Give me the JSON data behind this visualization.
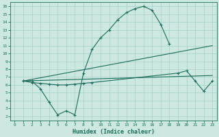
{
  "xlabel": "Humidex (Indice chaleur)",
  "bg_color": "#cce8e0",
  "line_color": "#1a6b5a",
  "grid_color": "#aad4cc",
  "xlim": [
    -0.5,
    23.5
  ],
  "ylim": [
    1.5,
    16.5
  ],
  "xticks": [
    0,
    1,
    2,
    3,
    4,
    5,
    6,
    7,
    8,
    9,
    10,
    11,
    12,
    13,
    14,
    15,
    16,
    17,
    18,
    19,
    20,
    21,
    22,
    23
  ],
  "yticks": [
    2,
    3,
    4,
    5,
    6,
    7,
    8,
    9,
    10,
    11,
    12,
    13,
    14,
    15,
    16
  ],
  "line1_x": [
    1,
    2,
    3,
    4,
    5,
    6,
    7,
    8,
    9,
    10,
    11,
    12,
    13,
    14,
    15,
    16,
    17,
    18
  ],
  "line1_y": [
    6.5,
    6.5,
    5.5,
    3.8,
    2.2,
    2.7,
    2.2,
    7.5,
    10.5,
    12.0,
    13.0,
    14.3,
    15.2,
    15.7,
    16.0,
    15.5,
    13.7,
    11.2
  ],
  "line2_x": [
    1,
    23
  ],
  "line2_y": [
    6.5,
    11.0
  ],
  "line3_x": [
    1,
    23
  ],
  "line3_y": [
    6.5,
    7.2
  ],
  "line4_x": [
    1,
    2,
    3,
    4,
    5,
    6,
    7,
    8,
    9,
    19,
    20,
    21,
    22,
    23
  ],
  "line4_y": [
    6.5,
    6.3,
    6.2,
    6.1,
    6.0,
    6.0,
    6.1,
    6.2,
    6.3,
    7.5,
    7.8,
    6.5,
    5.2,
    6.5
  ],
  "xlabel_fontsize": 6,
  "tick_fontsize": 4.5
}
